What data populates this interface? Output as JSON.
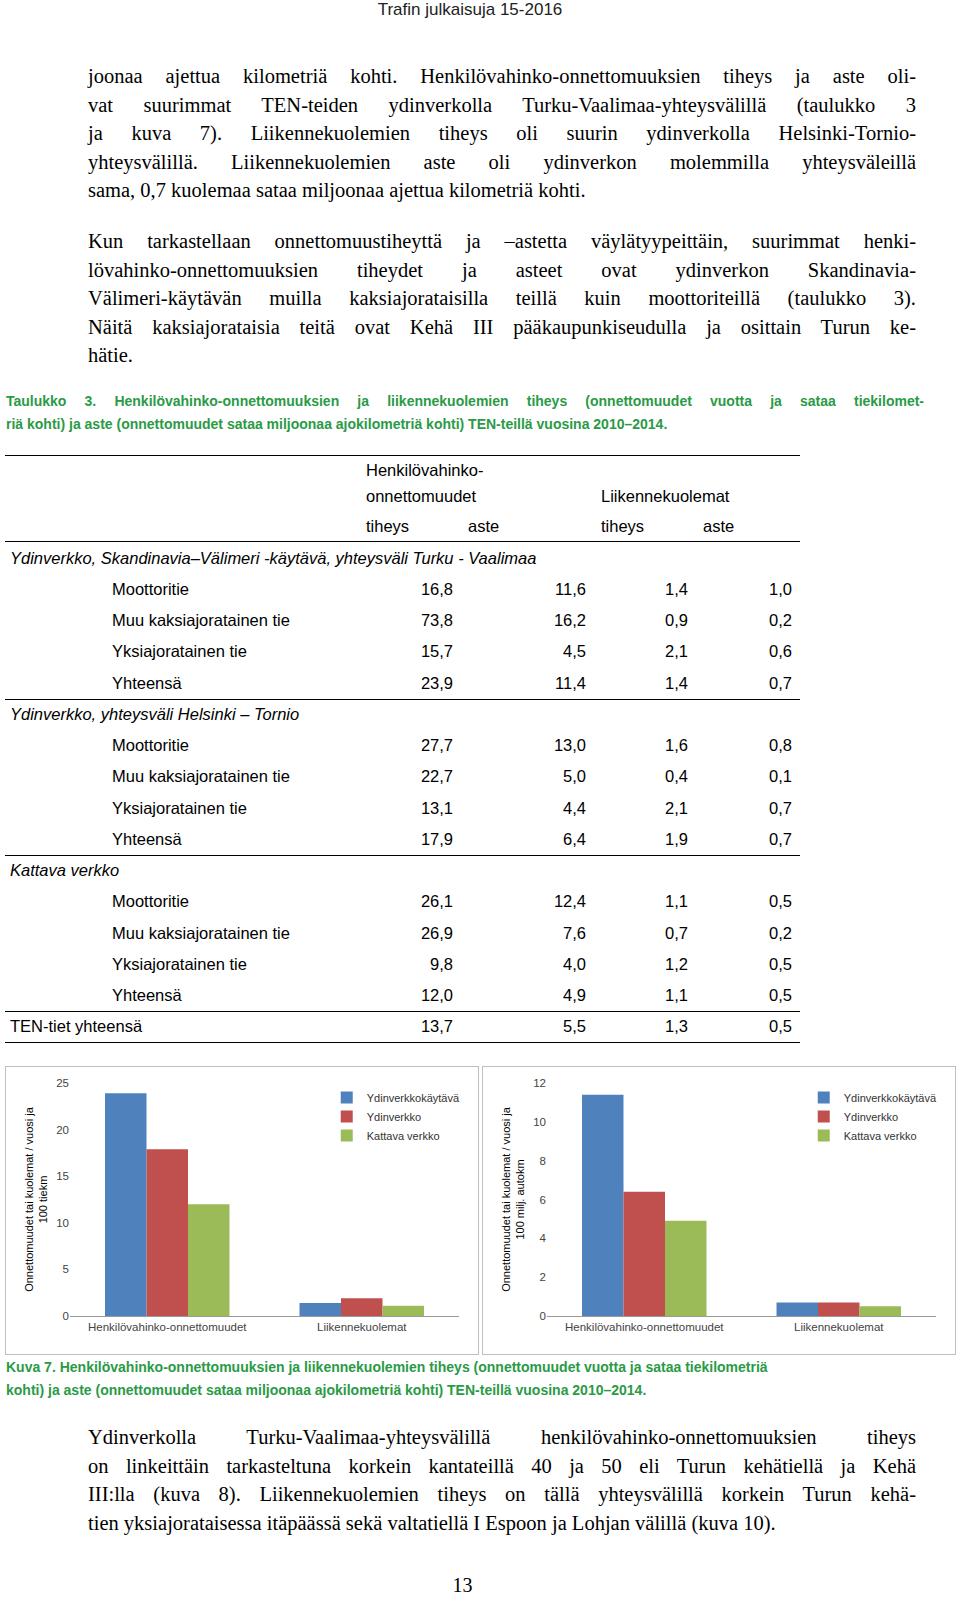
{
  "header": "Trafin julkaisuja 15-2016",
  "paragraphs_before": [
    [
      "joonaa ajettua kilometriä kohti. Henkilövahinko-onnettomuuksien tiheys ja aste oli-",
      "vat suurimmat TEN-teiden ydinverkolla Turku-Vaalimaa-yhteysvälillä (taulukko 3",
      "ja kuva 7). Liikennekuolemien tiheys oli suurin ydinverkolla Helsinki-Tornio-",
      "yhteysvälillä. Liikennekuolemien aste oli ydinverkon molemmilla yhteysväleillä",
      "sama, 0,7 kuolemaa sataa miljoonaa ajettua kilometriä kohti."
    ],
    [
      "Kun tarkastellaan onnettomuustiheyttä ja –astetta väylätyypeittäin, suurimmat henki-",
      "lövahinko-onnettomuuksien tiheydet ja asteet ovat ydinverkon Skandinavia-",
      "Välimeri-käytävän muilla kaksiajorataisilla teillä kuin moottoriteillä (taulukko 3).",
      "Näitä kaksiajorataisia teitä ovat Kehä III pääkaupunkiseudulla ja osittain Turun ke-",
      "hätie."
    ]
  ],
  "table": {
    "caption": [
      "Taulukko 3. Henkilövahinko-onnettomuuksien ja liikennekuolemien tiheys (onnettomuudet vuotta ja sataa tiekilomet-",
      "riä kohti) ja aste (onnettomuudet sataa miljoonaa ajokilometriä kohti) TEN-teillä vuosina 2010–2014."
    ],
    "header": {
      "group1": [
        "Henkilövahinko-",
        "onnettomuudet"
      ],
      "group2": "Liikennekuolemat",
      "sub": [
        "tiheys",
        "aste",
        "tiheys",
        "aste"
      ]
    },
    "sections": [
      {
        "title": "Ydinverkko, Skandinavia–Välimeri -käytävä, yhteysväli Turku - Vaalimaa",
        "rows": [
          [
            "Moottoritie",
            "16,8",
            "11,6",
            "1,4",
            "1,0"
          ],
          [
            "Muu kaksiajoratainen tie",
            "73,8",
            "16,2",
            "0,9",
            "0,2"
          ],
          [
            "Yksiajoratainen tie",
            "15,7",
            "4,5",
            "2,1",
            "0,6"
          ],
          [
            "Yhteensä",
            "23,9",
            "11,4",
            "1,4",
            "0,7"
          ]
        ]
      },
      {
        "title": "Ydinverkko, yhteysväli Helsinki – Tornio",
        "rows": [
          [
            "Moottoritie",
            "27,7",
            "13,0",
            "1,6",
            "0,8"
          ],
          [
            "Muu kaksiajoratainen tie",
            "22,7",
            "5,0",
            "0,4",
            "0,1"
          ],
          [
            "Yksiajoratainen tie",
            "13,1",
            "4,4",
            "2,1",
            "0,7"
          ],
          [
            "Yhteensä",
            "17,9",
            "6,4",
            "1,9",
            "0,7"
          ]
        ]
      },
      {
        "title": "Kattava verkko",
        "rows": [
          [
            "Moottoritie",
            "26,1",
            "12,4",
            "1,1",
            "0,5"
          ],
          [
            "Muu kaksiajoratainen tie",
            "26,9",
            "7,6",
            "0,7",
            "0,2"
          ],
          [
            "Yksiajoratainen tie",
            "9,8",
            "4,0",
            "1,2",
            "0,5"
          ],
          [
            "Yhteensä",
            "12,0",
            "4,9",
            "1,1",
            "0,5"
          ]
        ]
      }
    ],
    "total": [
      "TEN-tiet yhteensä",
      "13,7",
      "5,5",
      "1,3",
      "0,5"
    ]
  },
  "chart_data": [
    {
      "type": "bar",
      "categories": [
        "Henkilövahinko-onnettomuudet",
        "Liikennekuolemat"
      ],
      "series": [
        {
          "name": "Ydinverkkokäytävä",
          "color": "#4f81bd",
          "values": [
            23.9,
            1.4
          ]
        },
        {
          "name": "Ydinverkko",
          "color": "#c0504d",
          "values": [
            17.9,
            1.9
          ]
        },
        {
          "name": "Kattava verkko",
          "color": "#9bbb59",
          "values": [
            12.0,
            1.1
          ]
        }
      ],
      "ylabel": [
        "Onnettomuudet tai kuolemat / vuosi ja",
        "100 tiekm"
      ],
      "ylim": [
        0,
        25
      ],
      "yticks": [
        0,
        5,
        10,
        15,
        20,
        25
      ],
      "grid": false,
      "legend": "upper right"
    },
    {
      "type": "bar",
      "categories": [
        "Henkilövahinko-onnettomuudet",
        "Liikennekuolemat"
      ],
      "series": [
        {
          "name": "Ydinverkkokäytävä",
          "color": "#4f81bd",
          "values": [
            11.4,
            0.7
          ]
        },
        {
          "name": "Ydinverkko",
          "color": "#c0504d",
          "values": [
            6.4,
            0.7
          ]
        },
        {
          "name": "Kattava verkko",
          "color": "#9bbb59",
          "values": [
            4.9,
            0.5
          ]
        }
      ],
      "ylabel": [
        "Onnettomuudet tai kuolemat / vuosi ja",
        "100 milj. autokm"
      ],
      "ylim": [
        0,
        12
      ],
      "yticks": [
        0,
        2,
        4,
        6,
        8,
        10,
        12
      ],
      "grid": false,
      "legend": "upper right"
    }
  ],
  "figure_caption": [
    "Kuva 7. Henkilövahinko-onnettomuuksien ja liikennekuolemien tiheys (onnettomuudet vuotta ja sataa tiekilometriä",
    "kohti) ja aste (onnettomuudet sataa miljoonaa ajokilometriä kohti) TEN-teillä vuosina 2010–2014."
  ],
  "paragraphs_after": [
    [
      "Ydinverkolla Turku-Vaalimaa-yhteysvälillä henkilövahinko-onnettomuuksien tiheys",
      "on linkeittäin tarkasteltuna korkein kantateillä 40 ja 50 eli Turun kehätiellä ja Kehä",
      "III:lla (kuva 8). Liikennekuolemien tiheys on tällä yhteysvälillä korkein Turun kehä-",
      "tien yksiajorataisessa itäpäässä sekä valtatiellä I Espoon ja Lohjan välillä (kuva 10)."
    ]
  ],
  "page_number": "13"
}
